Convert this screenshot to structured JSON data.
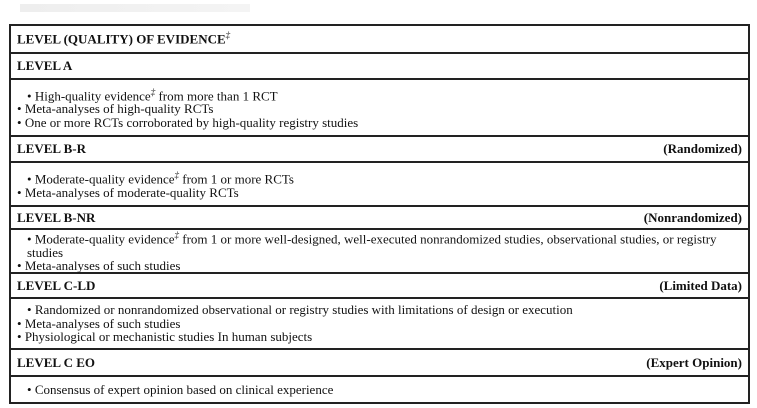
{
  "title": "LEVEL (QUALITY) OF EVIDENCE",
  "title_mark": "‡",
  "levels": [
    {
      "label": "LEVEL A",
      "qualifier": "",
      "items": [
        {
          "pre": "High-quality evidence",
          "mark": "‡",
          "post": " from more than 1 RCT"
        },
        {
          "pre": "Meta-analyses of high-quality RCTs"
        },
        {
          "pre": "One or more RCTs corroborated by high-quality registry studies"
        }
      ]
    },
    {
      "label": "LEVEL B-R",
      "qualifier": "(Randomized)",
      "items": [
        {
          "pre": "Moderate-quality evidence",
          "mark": "‡",
          "post": " from 1 or more RCTs"
        },
        {
          "pre": "Meta-analyses of moderate-quality RCTs"
        }
      ]
    },
    {
      "label": "LEVEL B-NR",
      "qualifier": "(Nonrandomized)",
      "items": [
        {
          "pre": "Moderate-quality evidence",
          "mark": "‡",
          "post": " from 1 or more well-designed, well-executed nonrandomized studies, observational studies, or registry studies"
        },
        {
          "pre": "Meta-analyses of such studies"
        }
      ]
    },
    {
      "label": "LEVEL C-LD",
      "qualifier": "(Limited Data)",
      "items": [
        {
          "pre": "Randomized or nonrandomized observational or registry studies with limitations of design or execution"
        },
        {
          "pre": "Meta-analyses of such studies"
        },
        {
          "pre": "Physiological or mechanistic studies In human subjects"
        }
      ]
    },
    {
      "label": "LEVEL C EO",
      "qualifier": "(Expert Opinion)",
      "items": [
        {
          "pre": "Consensus of expert opinion based on clinical experience"
        }
      ]
    }
  ]
}
